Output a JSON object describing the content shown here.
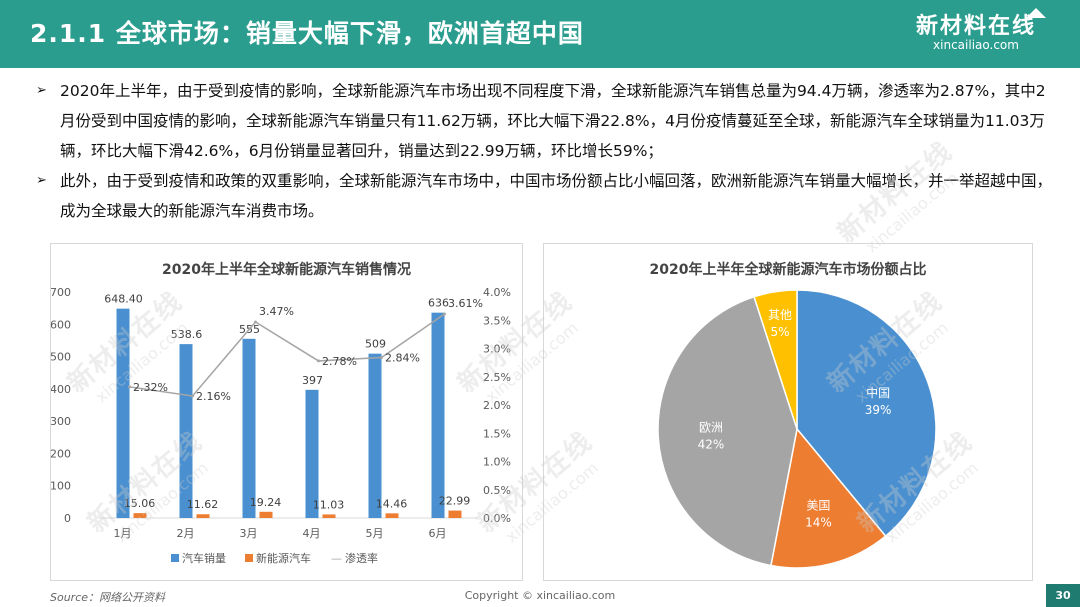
{
  "header": {
    "title": "2.1.1 全球市场：销量大幅下滑，欧洲首超中国",
    "logo_cn": "新材料在线",
    "logo_url": "xincailiao.com"
  },
  "bullets": [
    "2020年上半年，由于受到疫情的影响，全球新能源汽车市场出现不同程度下滑，全球新能源汽车销售总量为94.4万辆，渗透率为2.87%，其中2月份受到中国疫情的影响，全球新能源汽车销量只有11.62万辆，环比大幅下滑22.8%，4月份疫情蔓延至全球，新能源汽车全球销量为11.03万辆，环比大幅下滑42.6%，6月份销量显著回升，销量达到22.99万辆，环比增长59%；",
    "此外，由于受到疫情和政策的双重影响，全球新能源汽车市场中，中国市场份额占比小幅回落，欧洲新能源汽车销量大幅增长，并一举超越中国，成为全球最大的新能源汽车消费市场。"
  ],
  "bullet_mark": "➢",
  "chart_data": [
    {
      "type": "bar",
      "title": "2020年上半年全球新能源汽车销售情况",
      "categories": [
        "1月",
        "2月",
        "3月",
        "4月",
        "5月",
        "6月"
      ],
      "series": [
        {
          "name": "汽车销量",
          "kind": "bar",
          "axis": "left",
          "color": "#4a90d0",
          "values": [
            648.4,
            538.6,
            555,
            397,
            509,
            636
          ],
          "labels": [
            "648.40",
            "538.6",
            "555",
            "397",
            "509",
            "636"
          ]
        },
        {
          "name": "新能源汽车",
          "kind": "bar",
          "axis": "left",
          "color": "#ed7d31",
          "values": [
            15.06,
            11.62,
            19.24,
            11.03,
            14.46,
            22.99
          ],
          "labels": [
            "15.06",
            "11.62",
            "19.24",
            "11.03",
            "14.46",
            "22.99"
          ]
        },
        {
          "name": "渗透率",
          "kind": "line",
          "axis": "right",
          "color": "#a5a5a5",
          "values": [
            2.32,
            2.16,
            3.47,
            2.78,
            2.84,
            3.61
          ],
          "labels": [
            "2.32%",
            "2.16%",
            "3.47%",
            "2.78%",
            "2.84%",
            "3.61%"
          ]
        }
      ],
      "y_left": {
        "min": 0,
        "max": 700,
        "ticks": [
          "0",
          "100",
          "200",
          "300",
          "400",
          "500",
          "600",
          "700"
        ]
      },
      "y_right": {
        "min": 0,
        "max": 4.0,
        "ticks": [
          "0.0%",
          "0.5%",
          "1.0%",
          "1.5%",
          "2.0%",
          "2.5%",
          "3.0%",
          "3.5%",
          "4.0%"
        ]
      },
      "legend_symbol_line": "—",
      "legend_position": "bottom"
    },
    {
      "type": "pie",
      "title": "2020年上半年全球新能源汽车市场份额占比",
      "slices": [
        {
          "label": "中国",
          "value": 39,
          "pct": "39%",
          "color": "#4a90d0"
        },
        {
          "label": "美国",
          "value": 14,
          "pct": "14%",
          "color": "#ed7d31"
        },
        {
          "label": "欧洲",
          "value": 42,
          "pct": "42%",
          "color": "#a5a5a5"
        },
        {
          "label": "其他",
          "value": 5,
          "pct": "5%",
          "color": "#ffc000"
        }
      ]
    }
  ],
  "footer": {
    "source": "Source：网络公开资料",
    "copyright": "Copyright © xincailiao.com",
    "page": "30"
  },
  "colors": {
    "header": "#2a9d8f",
    "page_tab": "#1f7a6f"
  }
}
